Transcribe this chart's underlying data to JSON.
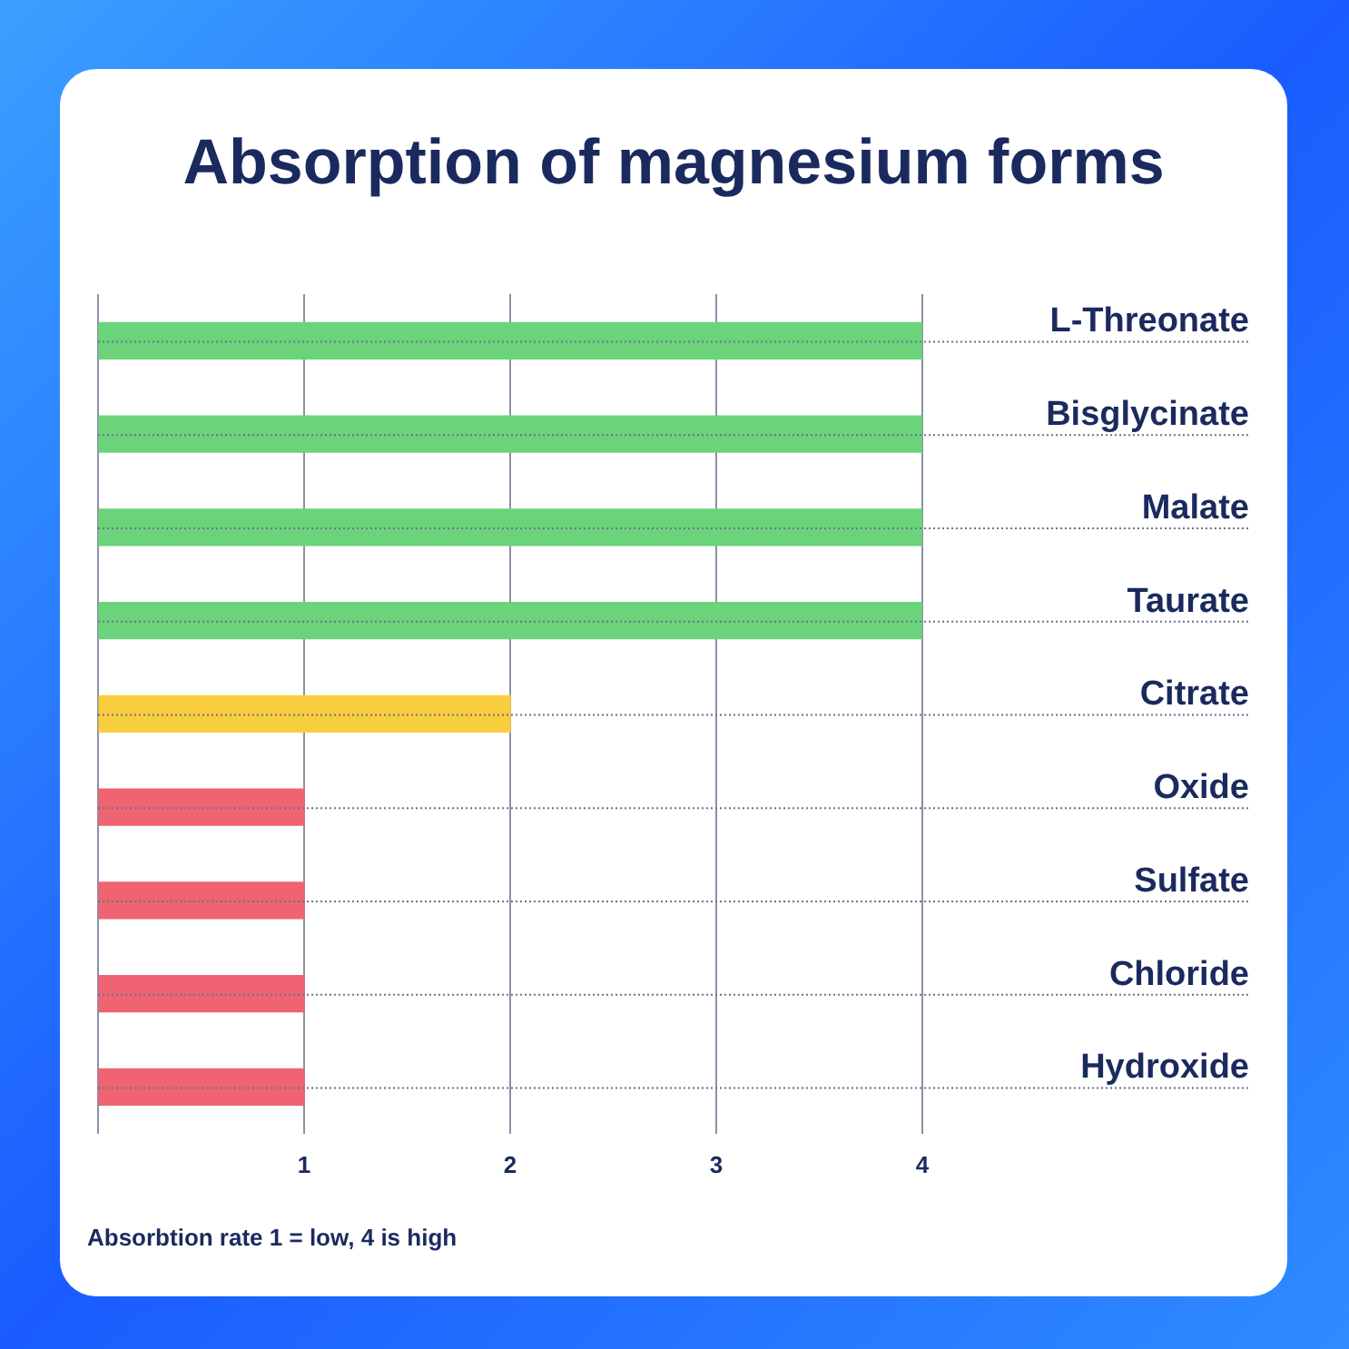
{
  "chart_data": {
    "type": "bar",
    "orientation": "horizontal",
    "title": "Absorption of magnesium forms",
    "categories": [
      "L-Threonate",
      "Bisglycinate",
      "Malate",
      "Taurate",
      "Citrate",
      "Oxide",
      "Sulfate",
      "Chloride",
      "Hydroxide"
    ],
    "values": [
      4,
      4,
      4,
      4,
      2,
      1,
      1,
      1,
      1
    ],
    "colors": [
      "#6bd37a",
      "#6bd37a",
      "#6bd37a",
      "#6bd37a",
      "#f8cd3e",
      "#ef6373",
      "#ef6373",
      "#ef6373",
      "#ef6373"
    ],
    "xlim": [
      0,
      4
    ],
    "xticks": [
      {
        "value": 0,
        "label": null
      },
      1,
      2,
      3,
      4
    ],
    "grid": true,
    "annotations": [
      "Absorbtion rate 1 = low, 4 is high"
    ]
  }
}
